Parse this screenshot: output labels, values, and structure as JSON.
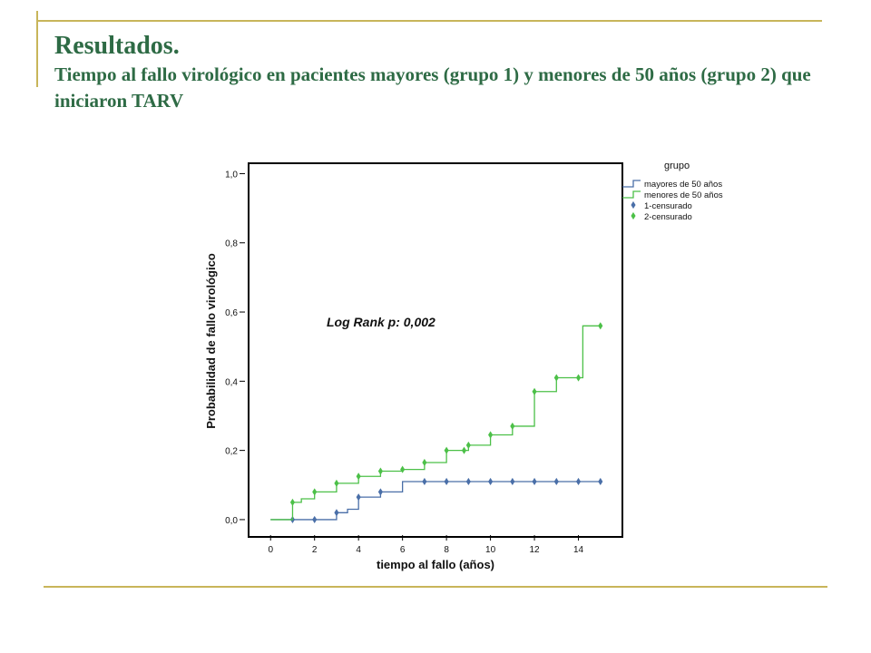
{
  "slide": {
    "title": "Resultados.",
    "subtitle": "Tiempo al fallo virológico en pacientes mayores (grupo 1) y menores de 50 años (grupo 2) que iniciaron TARV"
  },
  "colors": {
    "accent_line": "#c8b55a",
    "title": "#2e6b45",
    "group1": "#4a6fa8",
    "group2": "#4cc048"
  },
  "chart_data": {
    "type": "line",
    "chart_subtype": "kaplan-meier step",
    "xlabel": "tiempo al fallo (años)",
    "ylabel": "Probabilidad de fallo virológico",
    "xlim": [
      -1,
      16
    ],
    "ylim": [
      -0.05,
      1.03
    ],
    "x_ticks": [
      0,
      2,
      4,
      6,
      8,
      10,
      12,
      14
    ],
    "x_tick_labels": [
      "0",
      "2",
      "4",
      "6",
      "8",
      "10",
      "12",
      "14"
    ],
    "y_ticks": [
      0,
      0.2,
      0.4,
      0.6,
      0.8,
      1.0
    ],
    "y_tick_labels": [
      "0,0",
      "0,2",
      "0,4",
      "0,6",
      "0,8",
      "1,0"
    ],
    "grid": false,
    "legend_title": "grupo",
    "legend_placement": "top-right outside",
    "annotation": "Log Rank p: 0,002",
    "legend_entries": [
      {
        "label": "mayores de 50 años",
        "kind": "line",
        "color": "#4a6fa8"
      },
      {
        "label": "menores de 50 años",
        "kind": "line",
        "color": "#4cc048"
      },
      {
        "label": "1-censurado",
        "kind": "marker",
        "color": "#4a6fa8"
      },
      {
        "label": "2-censurado",
        "kind": "marker",
        "color": "#4cc048"
      }
    ],
    "series": [
      {
        "name": "mayores de 50 años",
        "color": "#4a6fa8",
        "steps": [
          [
            0,
            0.0
          ],
          [
            3,
            0.02
          ],
          [
            3.5,
            0.03
          ],
          [
            4,
            0.065
          ],
          [
            5,
            0.08
          ],
          [
            6,
            0.11
          ],
          [
            15,
            0.11
          ]
        ],
        "censored": [
          [
            1,
            0.0
          ],
          [
            2,
            0.0
          ],
          [
            3,
            0.02
          ],
          [
            4,
            0.065
          ],
          [
            5,
            0.08
          ],
          [
            7,
            0.11
          ],
          [
            8,
            0.11
          ],
          [
            9,
            0.11
          ],
          [
            10,
            0.11
          ],
          [
            11,
            0.11
          ],
          [
            12,
            0.11
          ],
          [
            13,
            0.11
          ],
          [
            14,
            0.11
          ],
          [
            15,
            0.11
          ]
        ]
      },
      {
        "name": "menores de 50 años",
        "color": "#4cc048",
        "steps": [
          [
            0,
            0.0
          ],
          [
            1,
            0.05
          ],
          [
            1.4,
            0.06
          ],
          [
            2,
            0.08
          ],
          [
            3,
            0.105
          ],
          [
            4,
            0.125
          ],
          [
            5,
            0.14
          ],
          [
            6,
            0.145
          ],
          [
            7,
            0.165
          ],
          [
            8,
            0.2
          ],
          [
            9,
            0.215
          ],
          [
            10,
            0.245
          ],
          [
            11,
            0.27
          ],
          [
            12,
            0.37
          ],
          [
            13,
            0.41
          ],
          [
            14.2,
            0.56
          ],
          [
            15,
            0.56
          ]
        ],
        "censored": [
          [
            1,
            0.05
          ],
          [
            2,
            0.08
          ],
          [
            3,
            0.105
          ],
          [
            4,
            0.125
          ],
          [
            5,
            0.14
          ],
          [
            6,
            0.145
          ],
          [
            7,
            0.165
          ],
          [
            8,
            0.2
          ],
          [
            8.8,
            0.2
          ],
          [
            9,
            0.215
          ],
          [
            10,
            0.245
          ],
          [
            11,
            0.27
          ],
          [
            12,
            0.37
          ],
          [
            13,
            0.41
          ],
          [
            14,
            0.41
          ],
          [
            15,
            0.56
          ]
        ]
      }
    ]
  }
}
